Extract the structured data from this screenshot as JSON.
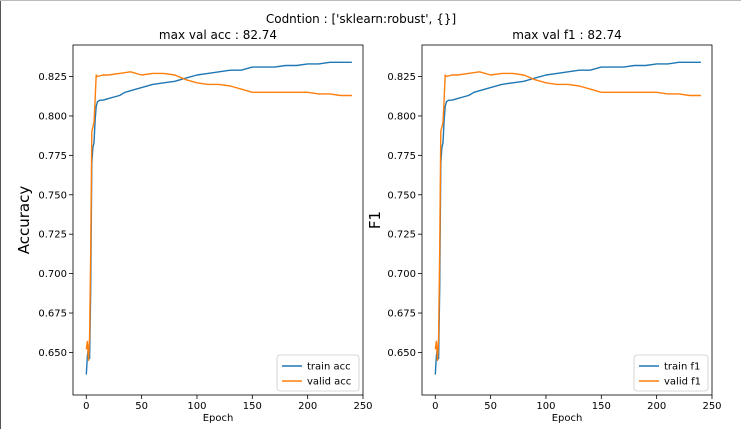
{
  "suptitle": "Codntion : ['sklearn:robust', {}]",
  "colors": {
    "train": "#1f77b4",
    "valid": "#ff7f0e",
    "axis": "#000000"
  },
  "chart_data": [
    {
      "type": "line",
      "title": "max val acc : 82.74",
      "xlabel": "Epoch",
      "ylabel": "Accuracy",
      "xlim": [
        -12,
        250
      ],
      "ylim": [
        0.623,
        0.845
      ],
      "xticks": [
        0,
        50,
        100,
        150,
        200,
        250
      ],
      "yticks": [
        0.65,
        0.675,
        0.7,
        0.725,
        0.75,
        0.775,
        0.8,
        0.825
      ],
      "legend_position": "lower-right",
      "series": [
        {
          "name": "train acc",
          "color": "#1f77b4",
          "x": [
            0,
            1,
            2,
            3,
            4,
            5,
            6,
            7,
            8,
            9,
            10,
            12,
            15,
            20,
            25,
            30,
            35,
            40,
            50,
            60,
            70,
            80,
            90,
            100,
            110,
            120,
            130,
            140,
            150,
            160,
            170,
            180,
            190,
            200,
            210,
            220,
            230,
            240
          ],
          "y": [
            0.636,
            0.648,
            0.653,
            0.646,
            0.69,
            0.77,
            0.78,
            0.783,
            0.797,
            0.806,
            0.809,
            0.81,
            0.81,
            0.811,
            0.812,
            0.813,
            0.815,
            0.816,
            0.818,
            0.82,
            0.821,
            0.822,
            0.824,
            0.826,
            0.827,
            0.828,
            0.829,
            0.829,
            0.831,
            0.831,
            0.831,
            0.832,
            0.832,
            0.833,
            0.833,
            0.834,
            0.834,
            0.834
          ]
        },
        {
          "name": "valid acc",
          "color": "#ff7f0e",
          "x": [
            0,
            1,
            2,
            3,
            4,
            5,
            6,
            7,
            8,
            9,
            10,
            15,
            20,
            30,
            40,
            50,
            60,
            70,
            80,
            90,
            100,
            110,
            120,
            130,
            140,
            150,
            160,
            170,
            180,
            190,
            200,
            210,
            220,
            230,
            240
          ],
          "y": [
            0.652,
            0.657,
            0.645,
            0.66,
            0.715,
            0.79,
            0.793,
            0.796,
            0.81,
            0.826,
            0.825,
            0.826,
            0.826,
            0.827,
            0.828,
            0.826,
            0.827,
            0.827,
            0.826,
            0.823,
            0.821,
            0.82,
            0.82,
            0.819,
            0.817,
            0.815,
            0.815,
            0.815,
            0.815,
            0.815,
            0.815,
            0.814,
            0.814,
            0.813,
            0.813
          ]
        }
      ]
    },
    {
      "type": "line",
      "title": "max val f1 : 82.74",
      "xlabel": "Epoch",
      "ylabel": "F1",
      "xlim": [
        -12,
        250
      ],
      "ylim": [
        0.623,
        0.845
      ],
      "xticks": [
        0,
        50,
        100,
        150,
        200,
        250
      ],
      "yticks": [
        0.65,
        0.675,
        0.7,
        0.725,
        0.75,
        0.775,
        0.8,
        0.825
      ],
      "legend_position": "lower-right",
      "series": [
        {
          "name": "train f1",
          "color": "#1f77b4",
          "x": [
            0,
            1,
            2,
            3,
            4,
            5,
            6,
            7,
            8,
            9,
            10,
            12,
            15,
            20,
            25,
            30,
            35,
            40,
            50,
            60,
            70,
            80,
            90,
            100,
            110,
            120,
            130,
            140,
            150,
            160,
            170,
            180,
            190,
            200,
            210,
            220,
            230,
            240
          ],
          "y": [
            0.636,
            0.648,
            0.653,
            0.646,
            0.69,
            0.77,
            0.78,
            0.783,
            0.797,
            0.806,
            0.809,
            0.81,
            0.81,
            0.811,
            0.812,
            0.813,
            0.815,
            0.816,
            0.818,
            0.82,
            0.821,
            0.822,
            0.824,
            0.826,
            0.827,
            0.828,
            0.829,
            0.829,
            0.831,
            0.831,
            0.831,
            0.832,
            0.832,
            0.833,
            0.833,
            0.834,
            0.834,
            0.834
          ]
        },
        {
          "name": "valid f1",
          "color": "#ff7f0e",
          "x": [
            0,
            1,
            2,
            3,
            4,
            5,
            6,
            7,
            8,
            9,
            10,
            15,
            20,
            30,
            40,
            50,
            60,
            70,
            80,
            90,
            100,
            110,
            120,
            130,
            140,
            150,
            160,
            170,
            180,
            190,
            200,
            210,
            220,
            230,
            240
          ],
          "y": [
            0.652,
            0.657,
            0.645,
            0.66,
            0.715,
            0.79,
            0.793,
            0.796,
            0.81,
            0.826,
            0.825,
            0.826,
            0.826,
            0.827,
            0.828,
            0.826,
            0.827,
            0.827,
            0.826,
            0.823,
            0.821,
            0.82,
            0.82,
            0.819,
            0.817,
            0.815,
            0.815,
            0.815,
            0.815,
            0.815,
            0.815,
            0.814,
            0.814,
            0.813,
            0.813
          ]
        }
      ]
    }
  ]
}
